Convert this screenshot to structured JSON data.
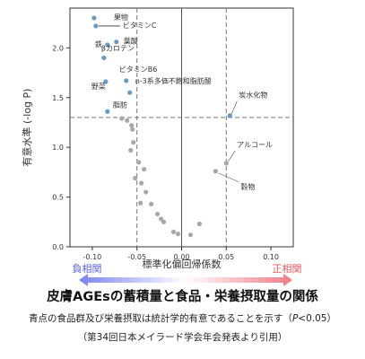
{
  "chart_data": {
    "type": "scatter",
    "xlabel": "標準化偏回帰係数",
    "ylabel": "有意水準 (-log P)",
    "xlim": [
      -0.125,
      0.125
    ],
    "ylim": [
      0,
      2.4
    ],
    "xticks": [
      "-0.10",
      "-0.05",
      "0.00",
      "0.05",
      "0.10"
    ],
    "xtick_values": [
      -0.1,
      -0.05,
      0.0,
      0.05,
      0.1
    ],
    "yticks": [
      "0.0",
      "0.5",
      "1.0",
      "1.5",
      "2.0"
    ],
    "ytick_values": [
      0.0,
      0.5,
      1.0,
      1.5,
      2.0
    ],
    "significance_threshold": 1.3,
    "vlines": [
      -0.05,
      0.0,
      0.05
    ],
    "grid": false,
    "significant_color": "#6a9bc2",
    "nonsignificant_color": "#a8a8a8",
    "points": [
      {
        "x": -0.098,
        "y": 2.3,
        "label": "果物",
        "significant": true
      },
      {
        "x": -0.096,
        "y": 2.22,
        "label": "ビタミンC",
        "significant": true
      },
      {
        "x": -0.073,
        "y": 2.06,
        "label": "葉酸",
        "significant": true
      },
      {
        "x": -0.083,
        "y": 2.03,
        "label": "鉄",
        "significant": true
      },
      {
        "x": -0.087,
        "y": 1.9,
        "label": "βカロテン",
        "significant": true
      },
      {
        "x": -0.062,
        "y": 1.67,
        "label": "ビタミンB6",
        "significant": true
      },
      {
        "x": -0.085,
        "y": 1.66,
        "label": "野菜",
        "significant": true
      },
      {
        "x": -0.058,
        "y": 1.55,
        "label": "n-3系多価不飽和脂肪酸",
        "significant": true
      },
      {
        "x": -0.083,
        "y": 1.36,
        "label": "脂肪",
        "significant": true
      },
      {
        "x": 0.054,
        "y": 1.32,
        "label": "炭水化物",
        "significant": true
      },
      {
        "x": 0.05,
        "y": 0.84,
        "label": "アルコール",
        "significant": false
      },
      {
        "x": 0.038,
        "y": 0.76,
        "label": "穀物",
        "significant": false
      },
      {
        "x": -0.067,
        "y": 1.29,
        "label": "",
        "significant": false
      },
      {
        "x": -0.061,
        "y": 1.27,
        "label": "",
        "significant": false
      },
      {
        "x": -0.056,
        "y": 1.22,
        "label": "",
        "significant": false
      },
      {
        "x": -0.055,
        "y": 1.18,
        "label": "",
        "significant": false
      },
      {
        "x": -0.054,
        "y": 1.05,
        "label": "",
        "significant": false
      },
      {
        "x": -0.057,
        "y": 0.97,
        "label": "",
        "significant": false
      },
      {
        "x": -0.048,
        "y": 0.85,
        "label": "",
        "significant": false
      },
      {
        "x": -0.042,
        "y": 0.78,
        "label": "",
        "significant": false
      },
      {
        "x": -0.052,
        "y": 0.69,
        "label": "",
        "significant": false
      },
      {
        "x": -0.045,
        "y": 0.64,
        "label": "",
        "significant": false
      },
      {
        "x": -0.04,
        "y": 0.55,
        "label": "",
        "significant": false
      },
      {
        "x": -0.046,
        "y": 0.44,
        "label": "",
        "significant": false
      },
      {
        "x": -0.034,
        "y": 0.43,
        "label": "",
        "significant": false
      },
      {
        "x": -0.027,
        "y": 0.33,
        "label": "",
        "significant": false
      },
      {
        "x": -0.023,
        "y": 0.28,
        "label": "",
        "significant": false
      },
      {
        "x": -0.02,
        "y": 0.25,
        "label": "",
        "significant": false
      },
      {
        "x": -0.009,
        "y": 0.15,
        "label": "",
        "significant": false
      },
      {
        "x": -0.004,
        "y": 0.13,
        "label": "",
        "significant": false
      },
      {
        "x": 0.01,
        "y": 0.12,
        "label": "",
        "significant": false
      },
      {
        "x": 0.02,
        "y": 0.23,
        "label": "",
        "significant": false
      }
    ]
  },
  "legend": {
    "negative": "負相関",
    "positive": "正相関",
    "negative_color": "#7c84f0",
    "positive_color": "#f07c84"
  },
  "caption": {
    "title": "皮膚AGEsの蓄積量と食品・栄養摂取量の関係",
    "line1": "青点の食品群及び栄養摂取は統計学的有意であることを示す（",
    "line1_p": "P",
    "line1_tail": "<0.05）",
    "line2": "（第34回日本メイラード学会年会発表より引用）"
  }
}
